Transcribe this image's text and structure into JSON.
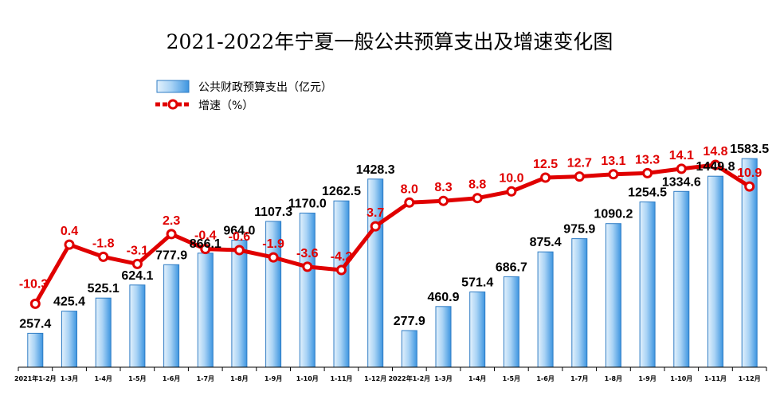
{
  "chart_data": {
    "type": "bar+line",
    "title": "2021-2022年宁夏一般公共预算支出及增速变化图",
    "categories": [
      "2021年1-2月",
      "1-3月",
      "1-4月",
      "1-5月",
      "1-6月",
      "1-7月",
      "1-8月",
      "1-9月",
      "1-10月",
      "1-11月",
      "1-12月",
      "2022年1-2月",
      "1-3月",
      "1-4月",
      "1-5月",
      "1-6月",
      "1-7月",
      "1-8月",
      "1-9月",
      "1-10月",
      "1-11月",
      "1-12月"
    ],
    "series": [
      {
        "name": "公共财政预算支出（亿元）",
        "type": "bar",
        "values": [
          257.4,
          425.4,
          525.1,
          624.1,
          777.9,
          866.1,
          964.0,
          1107.3,
          1170.0,
          1262.5,
          1428.3,
          277.9,
          460.9,
          571.4,
          686.7,
          875.4,
          975.9,
          1090.2,
          1254.5,
          1334.6,
          1449.8,
          1583.5
        ],
        "labels": [
          "257.4",
          "425.4",
          "525.1",
          "624.1",
          "777.9",
          "866.1",
          "964.0",
          "1107.3",
          "1170.0",
          "1262.5",
          "1428.3",
          "277.9",
          "460.9",
          "571.4",
          "686.7",
          "875.4",
          "975.9",
          "1090.2",
          "1254.5",
          "1334.6",
          "1449.8",
          "1583.5"
        ]
      },
      {
        "name": "增速（%）",
        "type": "line",
        "values": [
          -10.3,
          0.4,
          -1.8,
          -3.1,
          2.3,
          -0.4,
          -0.6,
          -1.9,
          -3.6,
          -4.2,
          3.7,
          8.0,
          8.3,
          8.8,
          10.0,
          12.5,
          12.7,
          13.1,
          13.3,
          14.1,
          14.8,
          10.9
        ],
        "labels": [
          "-10.3",
          "0.4",
          "-1.8",
          "-3.1",
          "2.3",
          "-0.4",
          "-0.6",
          "-1.9",
          "-3.6",
          "-4.2",
          "3.7",
          "8.0",
          "8.3",
          "8.8",
          "10.0",
          "12.5",
          "12.7",
          "13.1",
          "13.3",
          "14.1",
          "14.8",
          "10.9"
        ]
      }
    ],
    "bar_axis_range": [
      0,
      1820
    ],
    "line_axis_range": [
      -17,
      23
    ],
    "grid": false,
    "legend_position": "top-left",
    "colors": {
      "bar_top": "#d9ecfb",
      "bar_bottom": "#3d95e0",
      "bar_edge": "#2f7cc4",
      "line": "#e00000",
      "marker": "#ffffff"
    }
  }
}
